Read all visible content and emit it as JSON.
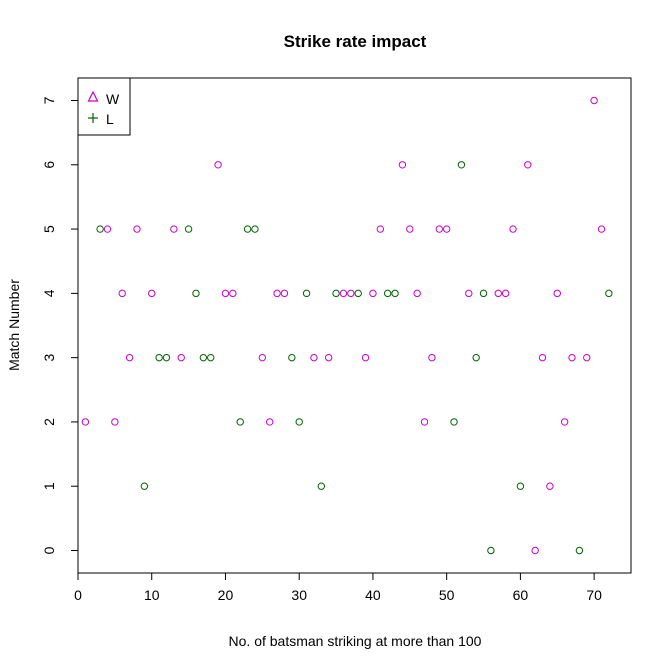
{
  "chart_data": {
    "type": "scatter",
    "title": "Strike rate impact",
    "xlabel": "No. of batsman striking at more than 100",
    "ylabel": "Match Number",
    "xlim": [
      0,
      75
    ],
    "ylim": [
      -0.35,
      7.35
    ],
    "xticks": [
      0,
      10,
      20,
      30,
      40,
      50,
      60,
      70
    ],
    "yticks": [
      0,
      1,
      2,
      3,
      4,
      5,
      6,
      7
    ],
    "grid": false,
    "legend_position": "top-left",
    "series": [
      {
        "name": "W",
        "color": "#cc00cc",
        "marker_in_legend": "triangle",
        "marker": "circle",
        "points": [
          [
            1,
            2
          ],
          [
            4,
            5
          ],
          [
            5,
            2
          ],
          [
            6,
            4
          ],
          [
            7,
            3
          ],
          [
            8,
            5
          ],
          [
            10,
            4
          ],
          [
            13,
            5
          ],
          [
            14,
            3
          ],
          [
            19,
            6
          ],
          [
            20,
            4
          ],
          [
            21,
            4
          ],
          [
            25,
            3
          ],
          [
            26,
            2
          ],
          [
            27,
            4
          ],
          [
            28,
            4
          ],
          [
            32,
            3
          ],
          [
            34,
            3
          ],
          [
            36,
            4
          ],
          [
            37,
            4
          ],
          [
            39,
            3
          ],
          [
            40,
            4
          ],
          [
            41,
            5
          ],
          [
            44,
            6
          ],
          [
            45,
            5
          ],
          [
            46,
            4
          ],
          [
            47,
            2
          ],
          [
            48,
            3
          ],
          [
            49,
            5
          ],
          [
            50,
            5
          ],
          [
            53,
            4
          ],
          [
            57,
            4
          ],
          [
            58,
            4
          ],
          [
            59,
            5
          ],
          [
            61,
            6
          ],
          [
            62,
            0
          ],
          [
            63,
            3
          ],
          [
            64,
            1
          ],
          [
            65,
            4
          ],
          [
            66,
            2
          ],
          [
            67,
            3
          ],
          [
            69,
            3
          ],
          [
            70,
            7
          ],
          [
            71,
            5
          ]
        ]
      },
      {
        "name": "L",
        "color": "#006400",
        "marker_in_legend": "plus",
        "marker": "circle",
        "points": [
          [
            3,
            5
          ],
          [
            9,
            1
          ],
          [
            11,
            3
          ],
          [
            12,
            3
          ],
          [
            15,
            5
          ],
          [
            16,
            4
          ],
          [
            17,
            3
          ],
          [
            18,
            3
          ],
          [
            22,
            2
          ],
          [
            23,
            5
          ],
          [
            24,
            5
          ],
          [
            29,
            3
          ],
          [
            30,
            2
          ],
          [
            31,
            4
          ],
          [
            33,
            1
          ],
          [
            35,
            4
          ],
          [
            38,
            4
          ],
          [
            42,
            4
          ],
          [
            43,
            4
          ],
          [
            51,
            2
          ],
          [
            52,
            6
          ],
          [
            54,
            3
          ],
          [
            55,
            4
          ],
          [
            56,
            0
          ],
          [
            60,
            1
          ],
          [
            68,
            0
          ],
          [
            72,
            4
          ]
        ]
      }
    ]
  }
}
